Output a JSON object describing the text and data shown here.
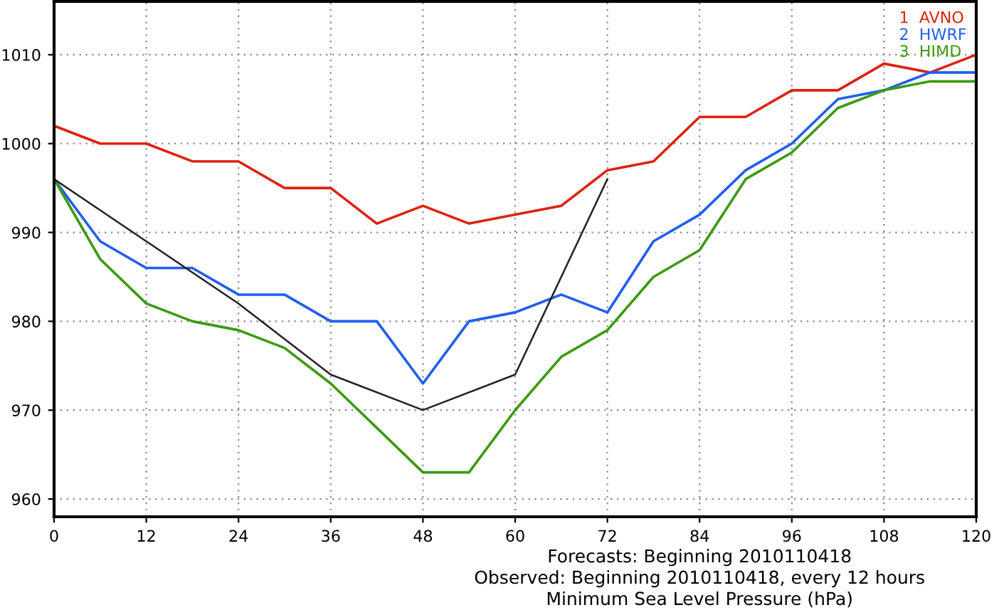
{
  "chart_data": {
    "type": "line",
    "xlabel": "Forecasts: Beginning 2010110418\nObserved: Beginning 2010110418, every 12 hours\nMinimum Sea Level Pressure (hPa)",
    "x": [
      0,
      6,
      12,
      18,
      24,
      30,
      36,
      42,
      48,
      54,
      60,
      66,
      72,
      78,
      84,
      90,
      96,
      102,
      108,
      114,
      120
    ],
    "series": [
      {
        "name": "1  AVNO",
        "color": "#dd2211",
        "values": [
          1002,
          1000,
          1000,
          998,
          998,
          995,
          995,
          991,
          993,
          991,
          992,
          993,
          997,
          998,
          1003,
          1003,
          1006,
          1006,
          1009,
          1008,
          1010
        ]
      },
      {
        "name": "2  HWRF",
        "color": "#1f5ff0",
        "values": [
          996,
          989,
          986,
          986,
          983,
          983,
          980,
          980,
          973,
          980,
          981,
          983,
          981,
          989,
          992,
          997,
          1000,
          1005,
          1006,
          1008,
          1008
        ]
      },
      {
        "name": "3  HIMD",
        "color": "#3c9a10",
        "values": [
          996,
          987,
          982,
          980,
          979,
          977,
          973,
          968,
          963,
          963,
          970,
          976,
          979,
          985,
          988,
          996,
          999,
          1004,
          1006,
          1007,
          1007
        ]
      },
      {
        "color": "#222222",
        "x": [
          0,
          12,
          24,
          36,
          48,
          60,
          72
        ],
        "values": [
          996,
          989,
          982,
          974,
          970,
          974,
          996
        ]
      }
    ],
    "xlim": [
      0,
      120
    ],
    "xticks": [
      0,
      12,
      24,
      36,
      48,
      60,
      72,
      84,
      96,
      108,
      120
    ],
    "ylim": [
      958,
      1016
    ],
    "yticks": [
      960,
      970,
      980,
      990,
      1000,
      1010
    ],
    "grid": true,
    "legend": "top right"
  }
}
